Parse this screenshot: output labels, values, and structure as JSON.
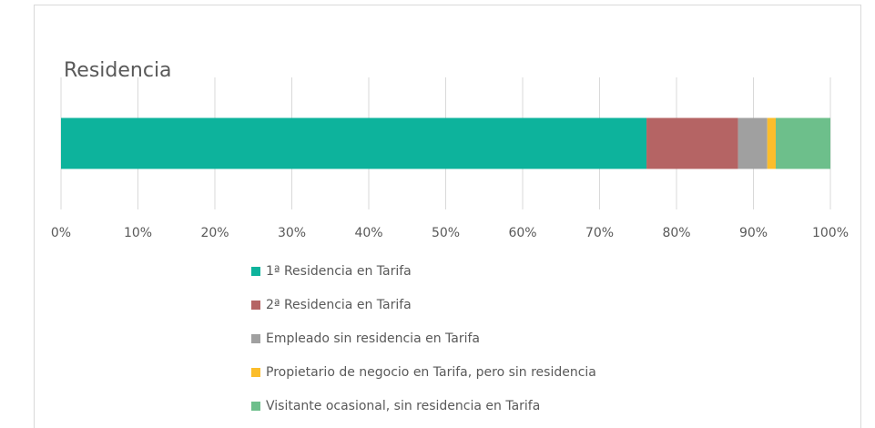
{
  "chart_data": {
    "type": "stacked_barh",
    "title": "Residencia",
    "categories": [
      null
    ],
    "series": [
      {
        "name": "1ª Residencia en Tarifa",
        "color": "#0db39c",
        "values": [
          76.1
        ]
      },
      {
        "name": "2ª Residencia en Tarifa",
        "color": "#b56464",
        "values": [
          11.9
        ]
      },
      {
        "name": "Empleado sin residencia en Tarifa",
        "color": "#a0a0a0",
        "values": [
          3.8
        ]
      },
      {
        "name": "Propietario de negocio en Tarifa, pero sin residencia",
        "color": "#fbbd2b",
        "values": [
          1.1
        ]
      },
      {
        "name": "Visitante ocasional, sin residencia en Tarifa",
        "color": "#6dbf8b",
        "values": [
          7.1
        ]
      }
    ],
    "xlim": [
      0,
      100
    ],
    "xticks": [
      {
        "value": 0,
        "label": "0%"
      },
      {
        "value": 10,
        "label": "10%"
      },
      {
        "value": 20,
        "label": "20%"
      },
      {
        "value": 30,
        "label": "30%"
      },
      {
        "value": 40,
        "label": "40%"
      },
      {
        "value": 50,
        "label": "50%"
      },
      {
        "value": 60,
        "label": "60%"
      },
      {
        "value": 70,
        "label": "70%"
      },
      {
        "value": 80,
        "label": "80%"
      },
      {
        "value": 90,
        "label": "90%"
      },
      {
        "value": 100,
        "label": "100%"
      }
    ],
    "grid": true,
    "legend": "bottom"
  }
}
